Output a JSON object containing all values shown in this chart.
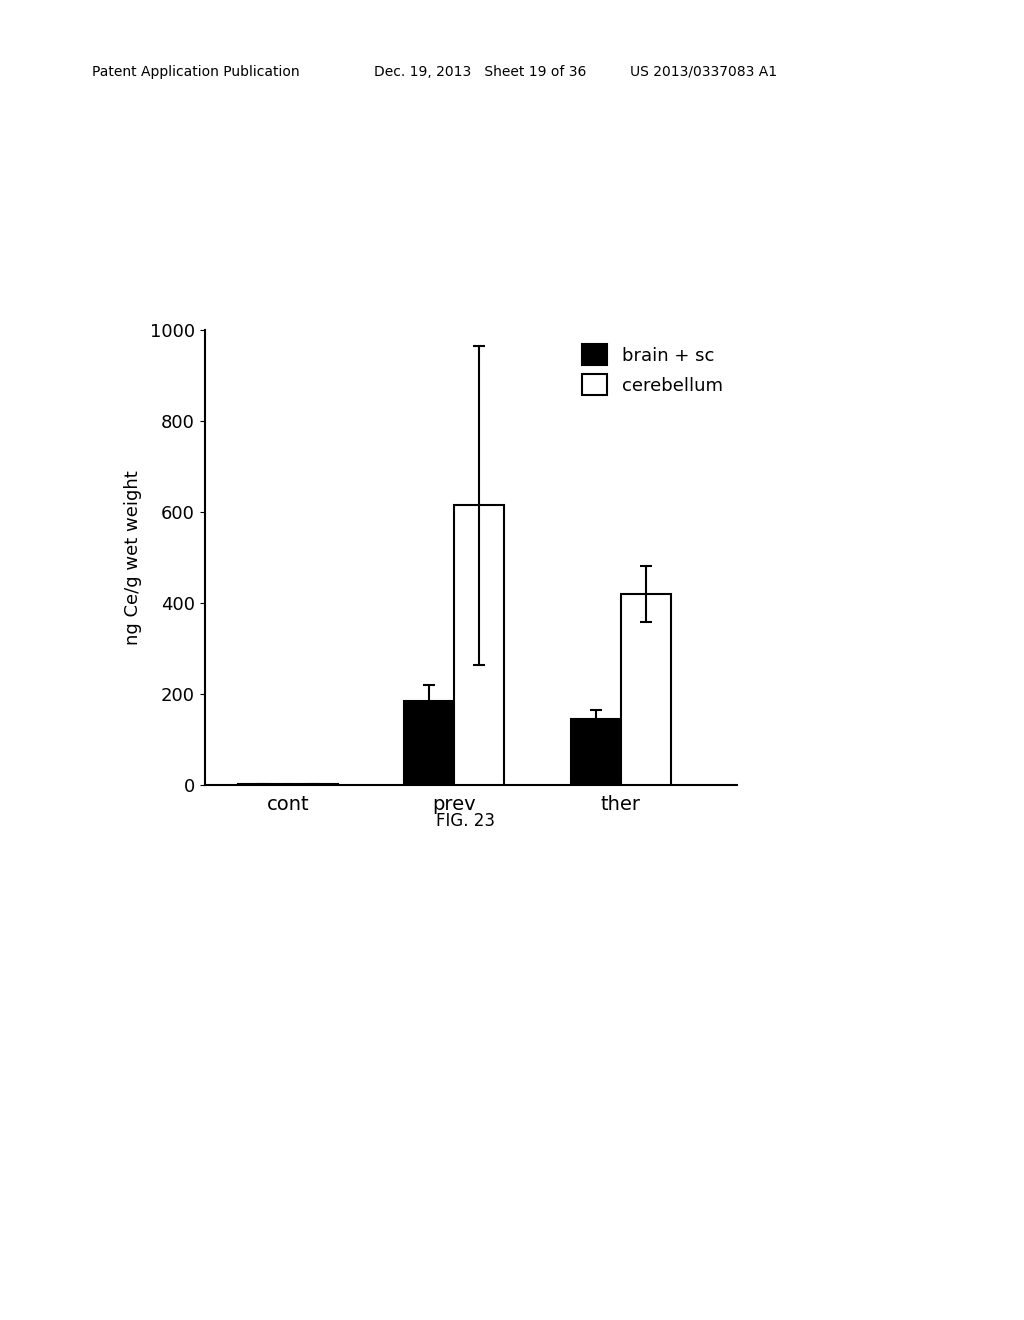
{
  "groups": [
    "cont",
    "prev",
    "ther"
  ],
  "brain_sc_values": [
    2,
    185,
    145
  ],
  "cerebellum_values": [
    2,
    615,
    420
  ],
  "brain_sc_errors": [
    2,
    35,
    20
  ],
  "cerebellum_errors": [
    2,
    350,
    62
  ],
  "bar_width": 0.3,
  "group_positions": [
    1.0,
    2.0,
    3.0
  ],
  "ylim": [
    0,
    1000
  ],
  "yticks": [
    0,
    200,
    400,
    600,
    800,
    1000
  ],
  "ylabel": "ng Ce/g wet weight",
  "xlabel": "",
  "legend_labels": [
    "brain + sc",
    "cerebellum"
  ],
  "legend_colors": [
    "black",
    "white"
  ],
  "fig_caption": "FIG. 23",
  "header_left": "Patent Application Publication",
  "header_center": "Dec. 19, 2013   Sheet 19 of 36",
  "header_right": "US 2013/0337083 A1",
  "background_color": "#ffffff",
  "bar_edge_color": "black",
  "bar_linewidth": 1.5,
  "font_size_ticks": 13,
  "font_size_ylabel": 13,
  "font_size_legend": 13,
  "font_size_xticks": 14,
  "font_size_caption": 12,
  "font_size_header": 10
}
